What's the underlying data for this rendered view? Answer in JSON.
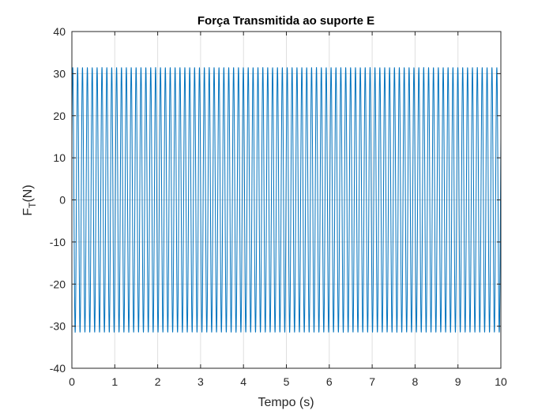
{
  "chart_data": {
    "type": "line",
    "title": "Força Transmitida ao suporte E",
    "xlabel": "Tempo (s)",
    "ylabel": {
      "main": "F",
      "sub": "T",
      "suffix": "(N)"
    },
    "xlim": [
      0,
      10
    ],
    "ylim": [
      -40,
      40
    ],
    "xticks": [
      0,
      1,
      2,
      3,
      4,
      5,
      6,
      7,
      8,
      9,
      10
    ],
    "yticks": [
      -40,
      -30,
      -20,
      -10,
      0,
      10,
      20,
      30,
      40
    ],
    "grid": true,
    "series": [
      {
        "amplitude": 31.5,
        "frequency_hz": 8.8,
        "initial_value": 15,
        "t_start": 0,
        "t_end": 10,
        "color": "#0072bd"
      }
    ]
  }
}
